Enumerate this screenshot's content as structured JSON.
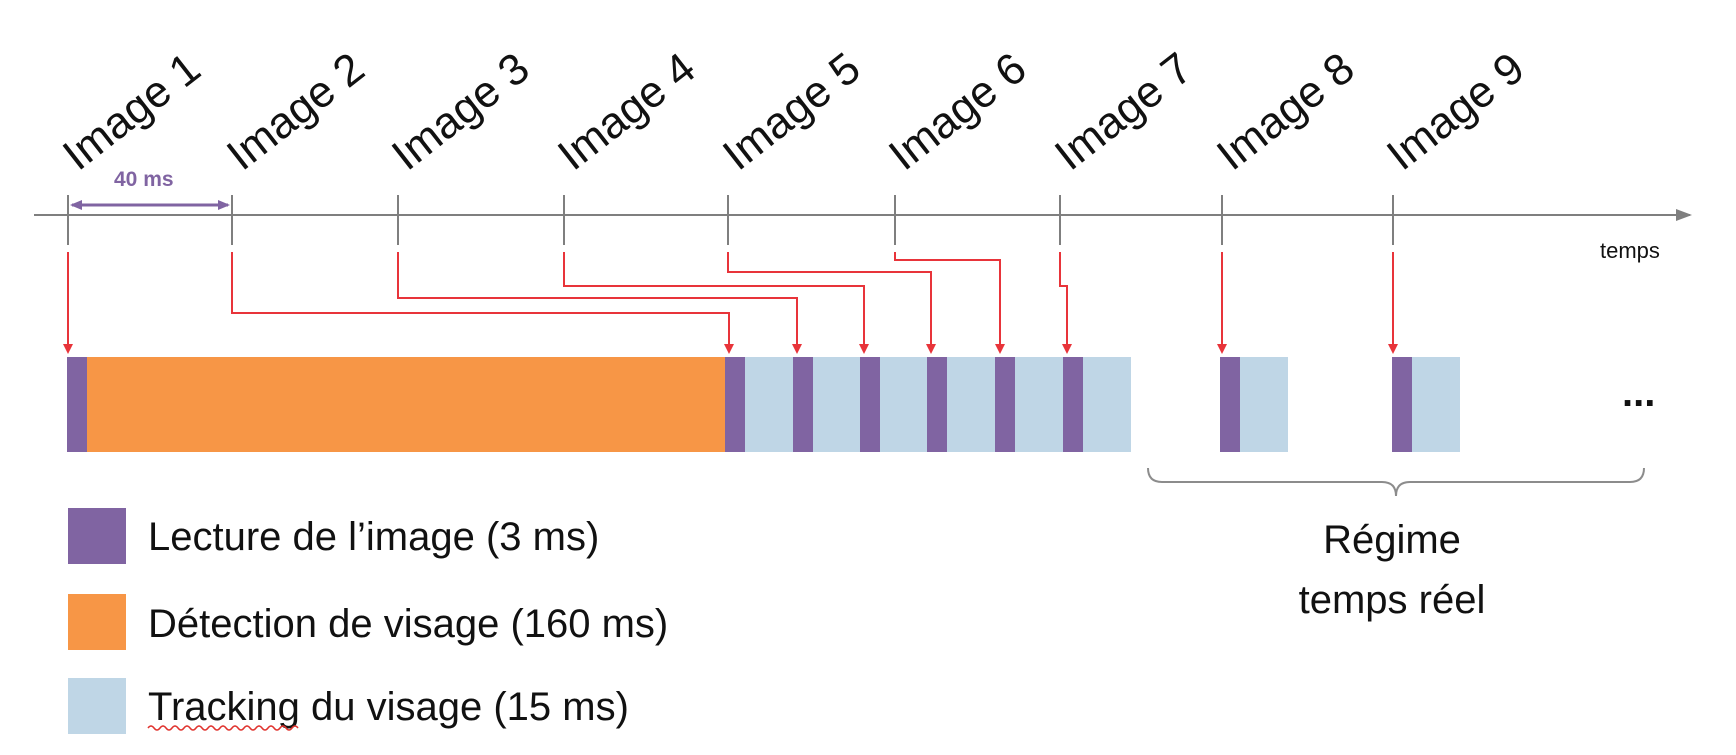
{
  "diagram": {
    "time_axis_label": "temps",
    "interval_label": "40 ms",
    "frames": [
      {
        "label": "Image 1"
      },
      {
        "label": "Image 2"
      },
      {
        "label": "Image 3"
      },
      {
        "label": "Image 4"
      },
      {
        "label": "Image 5"
      },
      {
        "label": "Image 6"
      },
      {
        "label": "Image 7"
      },
      {
        "label": "Image 8"
      },
      {
        "label": "Image 9"
      }
    ],
    "ellipsis": "...",
    "regime_label_line1": "Régime",
    "regime_label_line2": "temps réel",
    "colors": {
      "lecture": "#8064a2",
      "detection": "#f79646",
      "tracking": "#bfd6e6",
      "arrow": "#e8343a",
      "axis": "#7f7f7f",
      "brace": "#8c8c8c",
      "interval": "#8064a2"
    }
  },
  "legend": [
    {
      "key": "lecture",
      "label": "Lecture de l’image (3 ms)"
    },
    {
      "key": "detection",
      "label": "Détection de visage (160 ms)"
    },
    {
      "key": "tracking",
      "label": "Tracking du visage (15 ms)"
    }
  ]
}
